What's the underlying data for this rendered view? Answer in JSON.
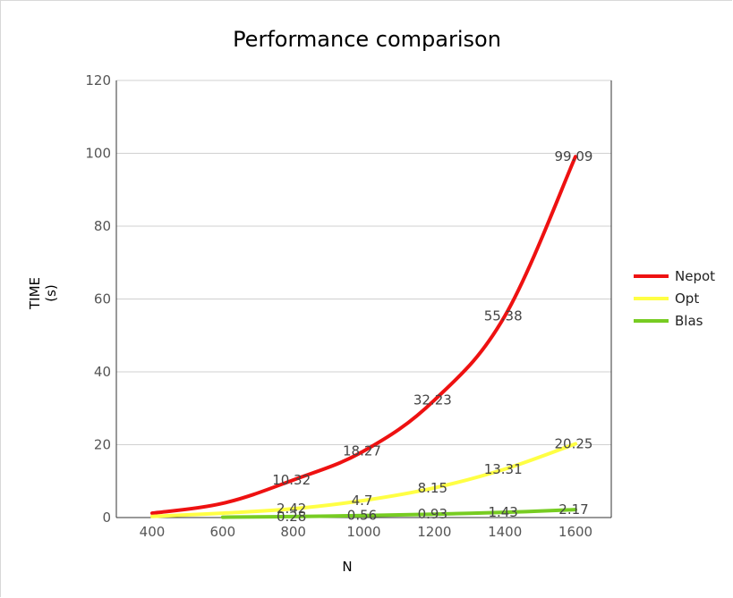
{
  "chart_data": {
    "type": "line",
    "title": "Performance comparison",
    "xlabel": "N",
    "ylabel": [
      "TIME",
      "(s)"
    ],
    "x": [
      400,
      600,
      800,
      1000,
      1200,
      1400,
      1600
    ],
    "x_ticks": [
      "400",
      "600",
      "800",
      "1000",
      "1200",
      "1400",
      "1600"
    ],
    "ylim": [
      0,
      120
    ],
    "y_ticks": [
      "0",
      "20",
      "40",
      "60",
      "80",
      "100",
      "120"
    ],
    "grid": true,
    "legend_position": "right",
    "series": [
      {
        "name": "Nepot",
        "color": "#ee1111",
        "x": [
          400,
          600,
          800,
          1000,
          1200,
          1400,
          1600
        ],
        "values": [
          1.2,
          3.9,
          10.32,
          18.27,
          32.23,
          55.38,
          99.09
        ],
        "labels": [
          "",
          "",
          "10.32",
          "18.27",
          "32.23",
          "55.38",
          "99.09"
        ]
      },
      {
        "name": "Opt",
        "color": "#ffff44",
        "x": [
          400,
          600,
          800,
          1000,
          1200,
          1400,
          1600
        ],
        "values": [
          0.3,
          1.2,
          2.42,
          4.7,
          8.15,
          13.31,
          20.25
        ],
        "labels": [
          "",
          "",
          "2.42",
          "4.7",
          "8.15",
          "13.31",
          "20.25"
        ]
      },
      {
        "name": "Blas",
        "color": "#77cc22",
        "x": [
          600,
          800,
          1000,
          1200,
          1400,
          1600
        ],
        "values": [
          0.1,
          0.28,
          0.56,
          0.93,
          1.43,
          2.17
        ],
        "labels": [
          "",
          "0.28",
          "0.56",
          "0.93",
          "1.43",
          "2.17"
        ]
      }
    ]
  }
}
